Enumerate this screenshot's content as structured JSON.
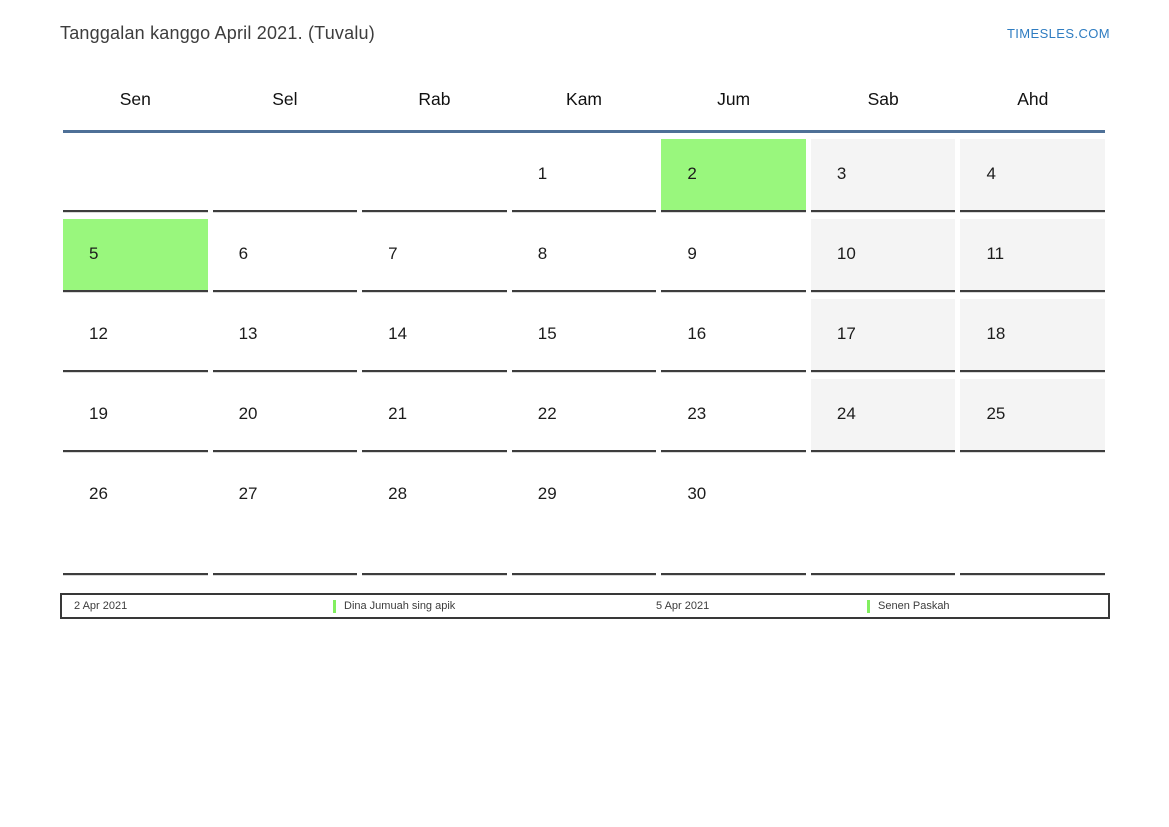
{
  "page": {
    "title": "Tanggalan kanggo April 2021. (Tuvalu)",
    "brand": "TIMESLES.COM"
  },
  "calendar": {
    "weekdays": [
      "Sen",
      "Sel",
      "Rab",
      "Kam",
      "Jum",
      "Sab",
      "Ahd"
    ],
    "weeks": [
      [
        {
          "day": "",
          "type": ""
        },
        {
          "day": "",
          "type": ""
        },
        {
          "day": "",
          "type": ""
        },
        {
          "day": "1",
          "type": ""
        },
        {
          "day": "2",
          "type": "holiday"
        },
        {
          "day": "3",
          "type": "weekend"
        },
        {
          "day": "4",
          "type": "weekend"
        }
      ],
      [
        {
          "day": "5",
          "type": "holiday"
        },
        {
          "day": "6",
          "type": ""
        },
        {
          "day": "7",
          "type": ""
        },
        {
          "day": "8",
          "type": ""
        },
        {
          "day": "9",
          "type": ""
        },
        {
          "day": "10",
          "type": "weekend"
        },
        {
          "day": "11",
          "type": "weekend"
        }
      ],
      [
        {
          "day": "12",
          "type": ""
        },
        {
          "day": "13",
          "type": ""
        },
        {
          "day": "14",
          "type": ""
        },
        {
          "day": "15",
          "type": ""
        },
        {
          "day": "16",
          "type": ""
        },
        {
          "day": "17",
          "type": "weekend"
        },
        {
          "day": "18",
          "type": "weekend"
        }
      ],
      [
        {
          "day": "19",
          "type": ""
        },
        {
          "day": "20",
          "type": ""
        },
        {
          "day": "21",
          "type": ""
        },
        {
          "day": "22",
          "type": ""
        },
        {
          "day": "23",
          "type": ""
        },
        {
          "day": "24",
          "type": "weekend"
        },
        {
          "day": "25",
          "type": "weekend"
        }
      ],
      [
        {
          "day": "26",
          "type": ""
        },
        {
          "day": "27",
          "type": ""
        },
        {
          "day": "28",
          "type": ""
        },
        {
          "day": "29",
          "type": ""
        },
        {
          "day": "30",
          "type": ""
        },
        {
          "day": "",
          "type": ""
        },
        {
          "day": "",
          "type": ""
        }
      ]
    ]
  },
  "legend": {
    "items": [
      {
        "date": "2 Apr 2021",
        "name": "Dina Jumuah sing apik"
      },
      {
        "date": "5 Apr 2021",
        "name": "Senen Paskah"
      }
    ]
  },
  "colors": {
    "holiday_green": "#99f77d",
    "weekend_gray": "#f4f4f4",
    "brand_blue": "#2e7cc1",
    "header_line_blue": "#4e7097",
    "cell_border_dark": "#3d3d3d",
    "legend_marker_green": "#82ef5f"
  }
}
